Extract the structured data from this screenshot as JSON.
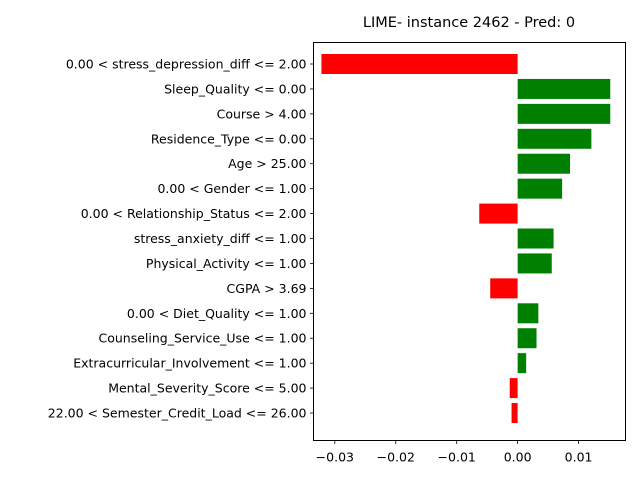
{
  "chart_data": {
    "type": "bar",
    "orientation": "horizontal",
    "title": "LIME- instance 2462 - Pred: 0",
    "xlabel": "",
    "ylabel": "",
    "xlim": [
      -0.0335,
      0.0177
    ],
    "xticks": [
      -0.03,
      -0.02,
      -0.01,
      0.0,
      0.01
    ],
    "xtick_labels": [
      "−0.03",
      "−0.02",
      "−0.01",
      "0.00",
      "0.01"
    ],
    "grid": false,
    "colors": {
      "positive": "#008000",
      "negative": "#ff0000"
    },
    "categories": [
      "0.00 < stress_depression_diff <= 2.00",
      "Sleep_Quality <= 0.00",
      "Course > 4.00",
      "Residence_Type <= 0.00",
      "Age > 25.00",
      "0.00 < Gender <= 1.00",
      "0.00 < Relationship_Status <= 2.00",
      "stress_anxiety_diff <= 1.00",
      "Physical_Activity <= 1.00",
      "CGPA > 3.69",
      "0.00 < Diet_Quality <= 1.00",
      "Counseling_Service_Use <= 1.00",
      "Extracurricular_Involvement <= 1.00",
      "Mental_Severity_Score <= 5.00",
      "22.00 < Semester_Credit_Load <= 26.00"
    ],
    "values": [
      -0.0322,
      0.0152,
      0.0152,
      0.0121,
      0.0086,
      0.0073,
      -0.0063,
      0.0059,
      0.0056,
      -0.0045,
      0.0034,
      0.0031,
      0.0014,
      -0.0013,
      -0.001
    ]
  }
}
